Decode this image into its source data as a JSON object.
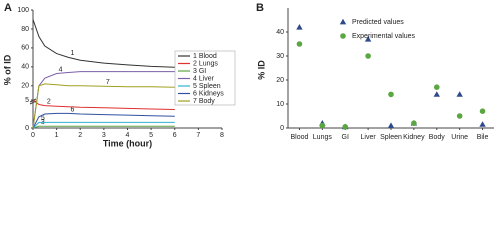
{
  "chart_data": [
    {
      "type": "line",
      "panel": "A",
      "x_label": "Time (hour)",
      "y_label": "% of ID",
      "x": [
        0,
        0.25,
        0.5,
        1,
        1.5,
        2,
        3,
        4,
        5,
        6
      ],
      "xlim": [
        0,
        8
      ],
      "xticks": [
        0,
        1,
        2,
        3,
        4,
        5,
        6,
        7,
        8
      ],
      "ylim": [
        0,
        100
      ],
      "yticks": [
        0,
        5,
        20,
        40,
        60,
        80,
        100
      ],
      "axis_break": 5,
      "series": [
        {
          "name": "1 Blood",
          "label": "1",
          "color": "#333333",
          "values": [
            90,
            72,
            62,
            54,
            50,
            47,
            44,
            42,
            40.5,
            39.5
          ]
        },
        {
          "name": "2 Lungs",
          "label": "2",
          "color": "#e03030",
          "values": [
            5,
            4.2,
            4,
            3.9,
            3.8,
            3.7,
            3.6,
            3.5,
            3.4,
            3.3
          ]
        },
        {
          "name": "3 GI",
          "label": "3",
          "color": "#5aa640",
          "values": [
            0,
            0.3,
            0.3,
            0.3,
            0.3,
            0.3,
            0.3,
            0.3,
            0.3,
            0.3
          ]
        },
        {
          "name": "4 Liver",
          "label": "4",
          "color": "#7b5fa8",
          "values": [
            0,
            20,
            28,
            33,
            34,
            35,
            35,
            35,
            35,
            35
          ]
        },
        {
          "name": "5 Spleen",
          "label": "5",
          "color": "#30b0d0",
          "values": [
            0,
            1,
            1,
            1,
            1,
            1,
            1,
            1,
            1,
            1
          ]
        },
        {
          "name": "6 Kidneys",
          "label": "6",
          "color": "#3050a0",
          "values": [
            0,
            2,
            2.5,
            2.6,
            2.6,
            2.5,
            2.4,
            2.3,
            2.2,
            2.1
          ]
        },
        {
          "name": "7 Body",
          "label": "7",
          "color": "#a0a020",
          "values": [
            0,
            20,
            22,
            21,
            20,
            20,
            19.5,
            19,
            19,
            18.5
          ]
        }
      ]
    },
    {
      "type": "scatter",
      "panel": "B",
      "y_label": "% ID",
      "categories": [
        "Blood",
        "Lungs",
        "GI",
        "Liver",
        "Spleen",
        "Kidney",
        "Body",
        "Urine",
        "Bile"
      ],
      "ylim": [
        0,
        50
      ],
      "yticks": [
        0,
        10,
        20,
        30,
        40
      ],
      "series": [
        {
          "name": "Predicted values",
          "marker": "triangle",
          "color": "#2e4a8b",
          "values": [
            42,
            2,
            0.5,
            37,
            1,
            2,
            14,
            14,
            1.5
          ]
        },
        {
          "name": "Experimental values",
          "marker": "circle",
          "color": "#5aa640",
          "values": [
            35,
            1,
            0.5,
            30,
            14,
            2,
            17,
            5,
            7
          ]
        }
      ]
    }
  ]
}
